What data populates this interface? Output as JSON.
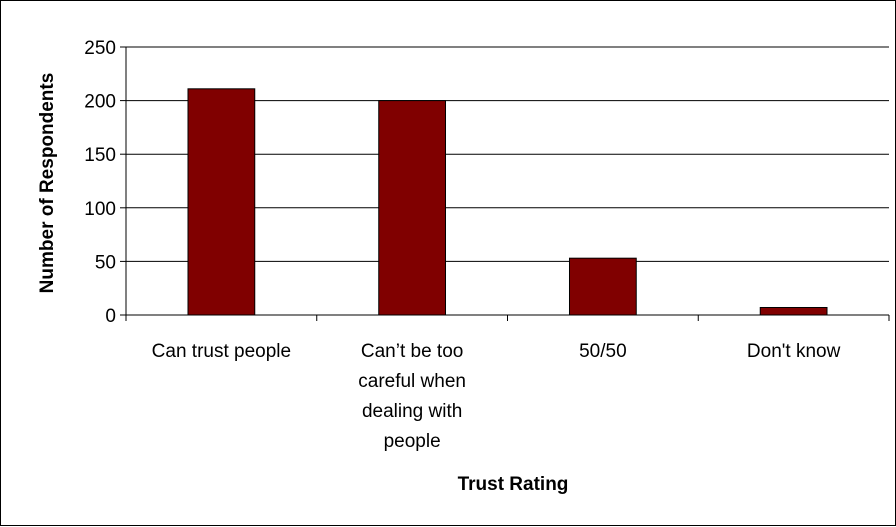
{
  "chart_data": {
    "type": "bar",
    "title": "",
    "xlabel": "Trust Rating",
    "ylabel": "Number of Respondents",
    "categories": [
      [
        "Can trust people"
      ],
      [
        "Can’t be too",
        "careful when",
        "dealing with",
        "people"
      ],
      [
        "50/50"
      ],
      [
        "Don't know"
      ]
    ],
    "values": [
      211,
      200,
      53,
      7
    ],
    "ylim": [
      0,
      250
    ],
    "yticks": [
      0,
      50,
      100,
      150,
      200,
      250
    ],
    "grid": true,
    "legend": "none",
    "bar_color": "#800000",
    "bar_edge_color": "#000000"
  }
}
